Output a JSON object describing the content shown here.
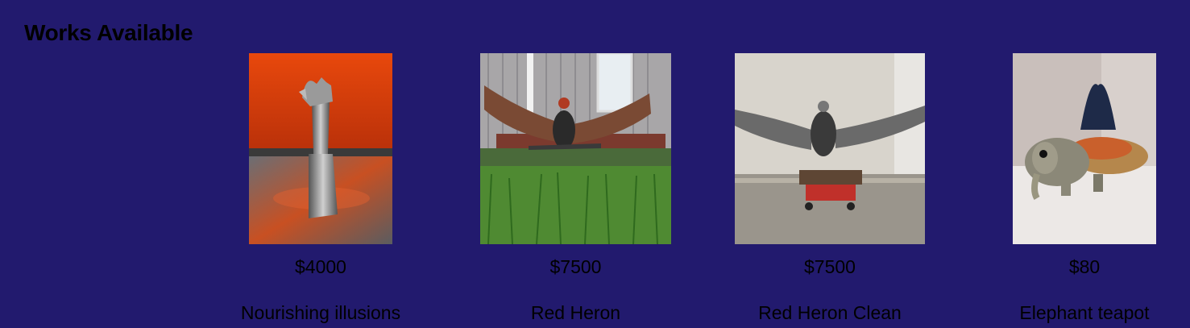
{
  "section": {
    "title": "Works Available"
  },
  "works": [
    {
      "price": "$4000",
      "name": "Nourishing illusions",
      "image": "cast-metal-arm-sculpture"
    },
    {
      "price": "$7500",
      "name": "Red Heron",
      "image": "metal-heron-on-lawn"
    },
    {
      "price": "$7500",
      "name": "Red Heron Clean",
      "image": "metal-heron-on-cart"
    },
    {
      "price": "$80",
      "name": "Elephant teapot",
      "image": "ceramic-elephant-teapot"
    }
  ],
  "colors": {
    "background": "#221a6e",
    "text": "#000000"
  }
}
